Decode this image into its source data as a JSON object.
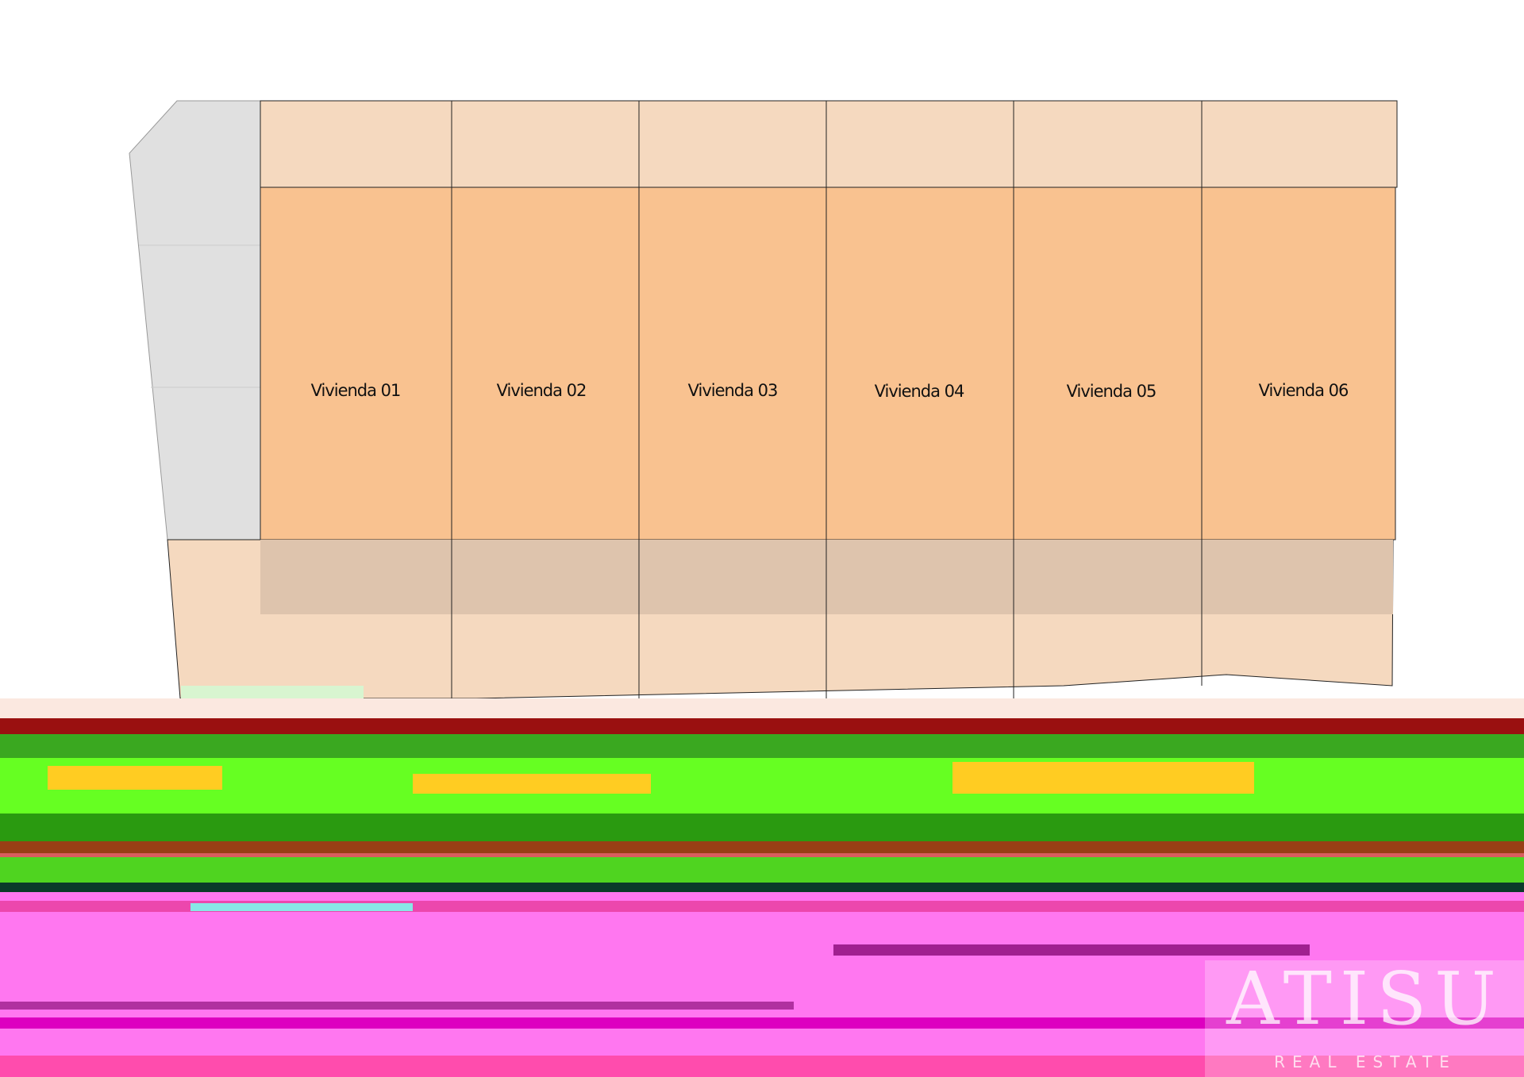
{
  "units": [
    {
      "label": "Vivienda 01"
    },
    {
      "label": "Vivienda 02"
    },
    {
      "label": "Vivienda 03"
    },
    {
      "label": "Vivienda 04"
    },
    {
      "label": "Vivienda 05"
    },
    {
      "label": "Vivienda 06"
    }
  ],
  "watermark": {
    "brand": "ATISU",
    "tagline": "REAL ESTATE"
  }
}
